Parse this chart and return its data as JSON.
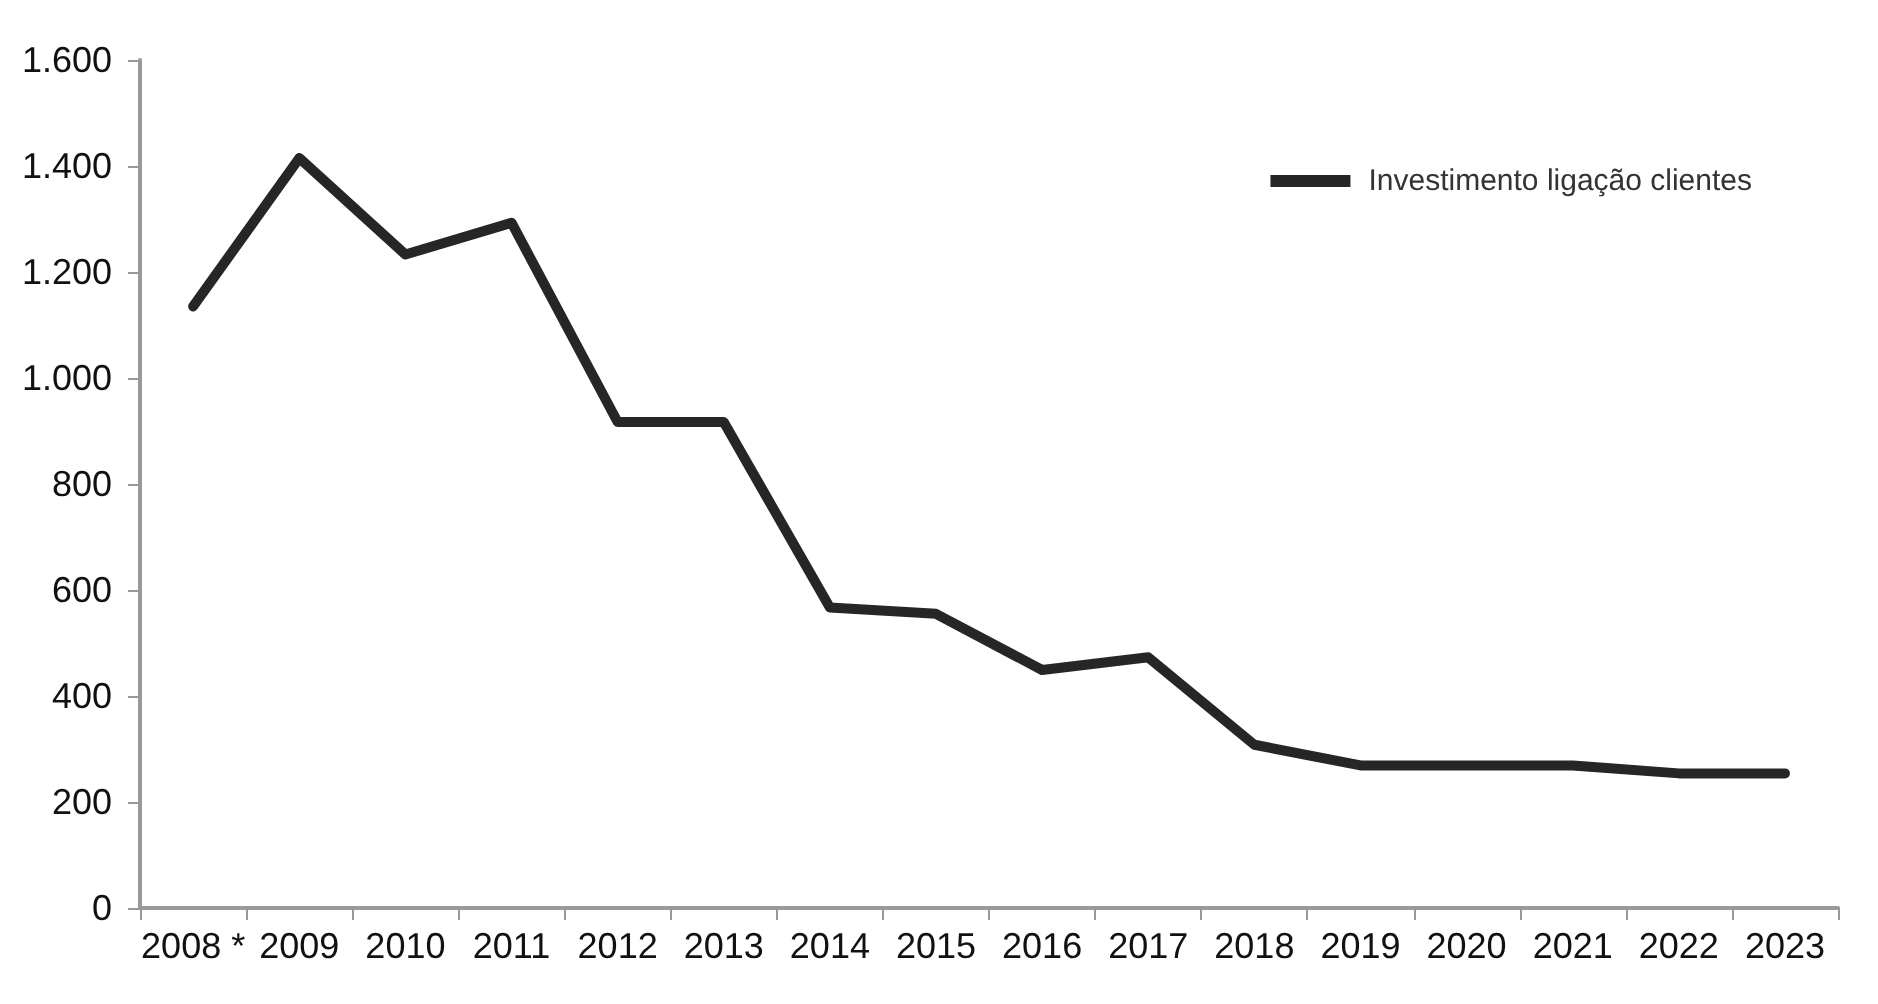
{
  "chart_data": {
    "type": "line",
    "categories": [
      "2008 *",
      "2009",
      "2010",
      "2011",
      "2012",
      "2013",
      "2014",
      "2015",
      "2016",
      "2017",
      "2018",
      "2019",
      "2020",
      "2021",
      "2022",
      "2023"
    ],
    "series": [
      {
        "name": "Investimento ligação clientes",
        "color": "#262626",
        "values": [
          1135,
          1415,
          1233,
          1293,
          917,
          917,
          567,
          555,
          449,
          473,
          308,
          269,
          269,
          269,
          254,
          254
        ]
      }
    ],
    "ylim": [
      0,
      1600
    ],
    "yticks": [
      {
        "value": 0,
        "label": "0"
      },
      {
        "value": 200,
        "label": "200"
      },
      {
        "value": 400,
        "label": "400"
      },
      {
        "value": 600,
        "label": "600"
      },
      {
        "value": 800,
        "label": "800"
      },
      {
        "value": 1000,
        "label": "1.000"
      },
      {
        "value": 1200,
        "label": "1.200"
      },
      {
        "value": 1400,
        "label": "1.400"
      },
      {
        "value": 1600,
        "label": "1.600"
      }
    ],
    "grid": false,
    "legend": "top right",
    "marker": "none",
    "line_style": "solid"
  }
}
